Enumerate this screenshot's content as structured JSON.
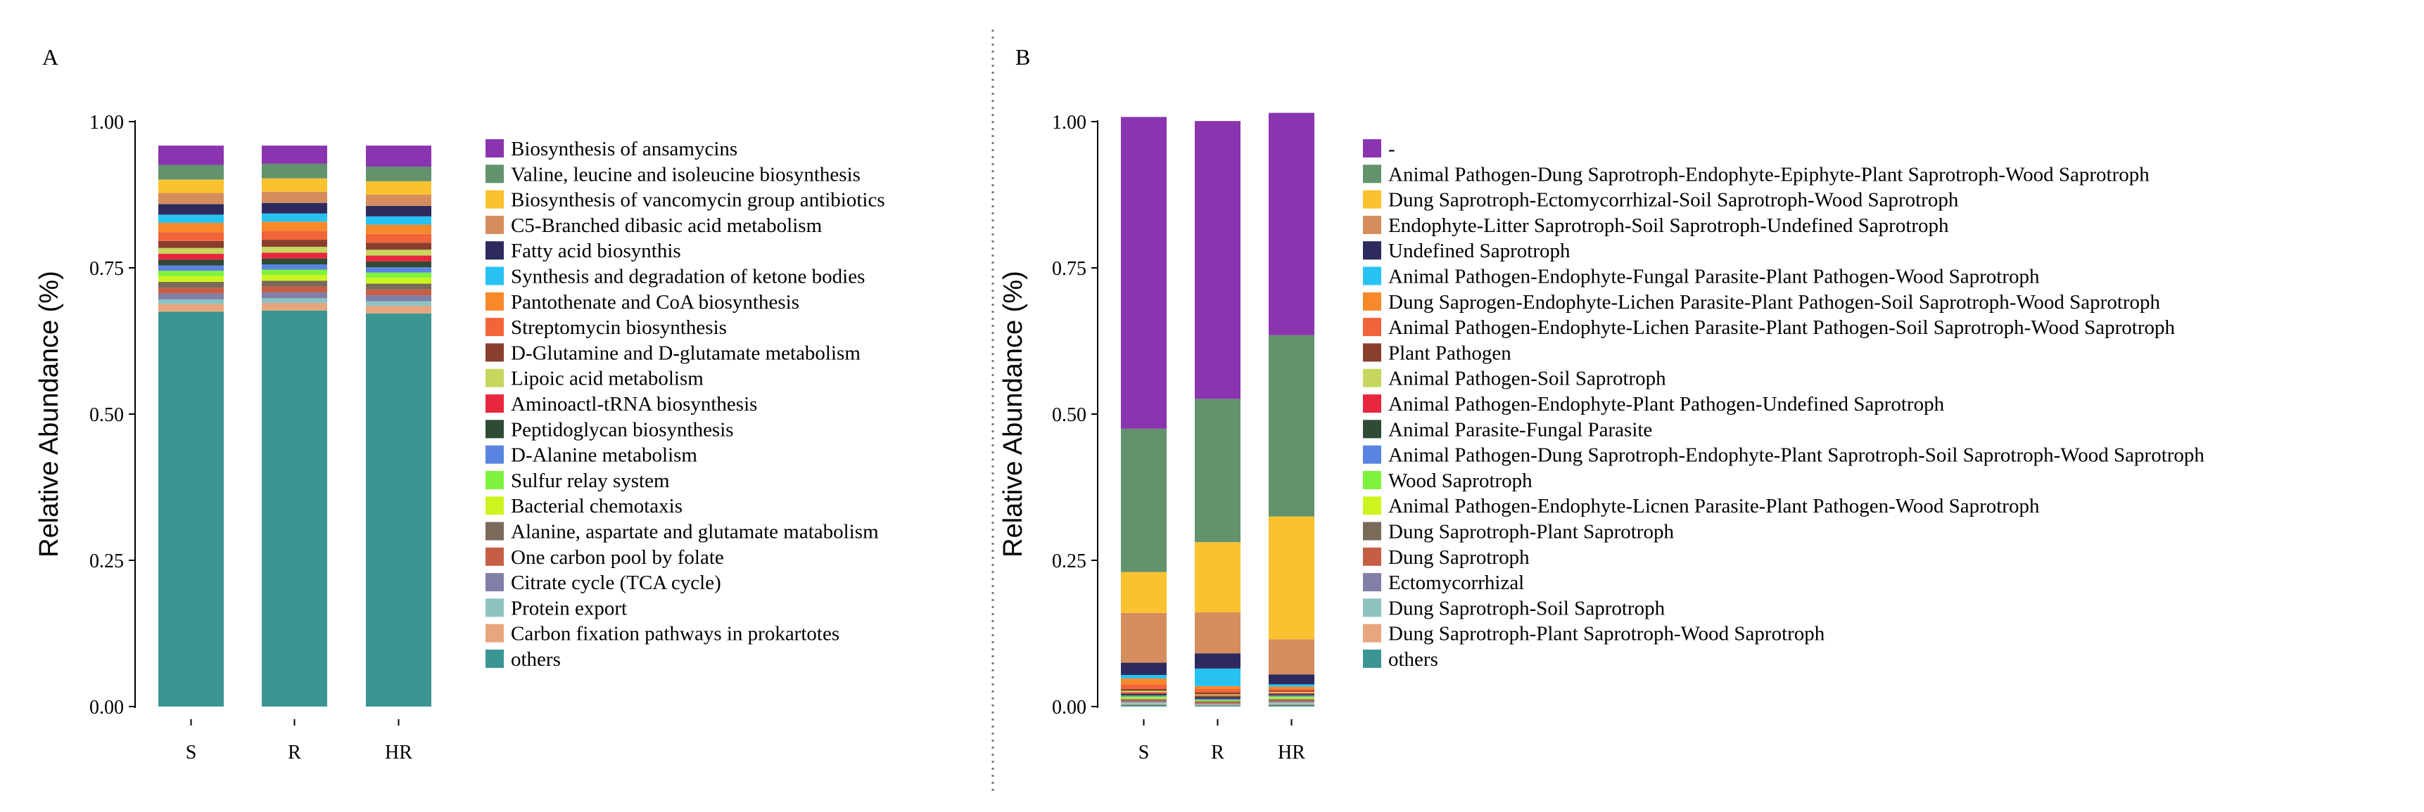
{
  "figure": {
    "panels": [
      "A",
      "B"
    ]
  },
  "chart_data": [
    {
      "panel": "A",
      "type": "bar",
      "stacked": true,
      "categories": [
        "S",
        "R",
        "HR"
      ],
      "ylabel": "Relative Abundance (%)",
      "xlabel": "",
      "ylim": [
        0,
        1
      ],
      "yticks": [
        "0.00",
        "0.25",
        "0.50",
        "0.75",
        "1.00"
      ],
      "legend_position": "right",
      "series": [
        {
          "name": "others",
          "color": "#3B9593",
          "values": [
            0.675,
            0.677,
            0.672
          ]
        },
        {
          "name": "Carbon fixation pathways in prokartotes",
          "color": "#E8A67F",
          "values": [
            0.013,
            0.013,
            0.013
          ]
        },
        {
          "name": "Protein export",
          "color": "#8CC3C1",
          "values": [
            0.008,
            0.008,
            0.008
          ]
        },
        {
          "name": "Citrate cycle (TCA cycle)",
          "color": "#7F7FA8",
          "values": [
            0.01,
            0.01,
            0.01
          ]
        },
        {
          "name": "One carbon pool by folate",
          "color": "#C65E46",
          "values": [
            0.01,
            0.01,
            0.01
          ]
        },
        {
          "name": "Alanine, aspartate and glutamate matabolism",
          "color": "#7A6A5A",
          "values": [
            0.01,
            0.01,
            0.01
          ]
        },
        {
          "name": "Bacterial chemotaxis",
          "color": "#CCF51F",
          "values": [
            0.01,
            0.01,
            0.01
          ]
        },
        {
          "name": "Sulfur relay system",
          "color": "#7EF23C",
          "values": [
            0.009,
            0.009,
            0.009
          ]
        },
        {
          "name": "D-Alanine metabolism",
          "color": "#5A84E2",
          "values": [
            0.009,
            0.009,
            0.009
          ]
        },
        {
          "name": "Peptidoglycan biosynthesis",
          "color": "#2F4A35",
          "values": [
            0.01,
            0.01,
            0.01
          ]
        },
        {
          "name": "Aminoactl-tRNA biosynthesis",
          "color": "#E8263E",
          "values": [
            0.01,
            0.01,
            0.01
          ]
        },
        {
          "name": "Lipoic acid metabolism",
          "color": "#C6D65E",
          "values": [
            0.01,
            0.01,
            0.01
          ]
        },
        {
          "name": "D-Glutamine and D-glutamate metabolism",
          "color": "#8A3E2C",
          "values": [
            0.012,
            0.012,
            0.012
          ]
        },
        {
          "name": "Streptomycin biosynthesis",
          "color": "#F2643A",
          "values": [
            0.015,
            0.015,
            0.015
          ]
        },
        {
          "name": "Pantothenate and CoA biosynthesis",
          "color": "#F7892A",
          "values": [
            0.016,
            0.016,
            0.016
          ]
        },
        {
          "name": "Synthesis and degradation of ketone bodies",
          "color": "#27C2F2",
          "values": [
            0.014,
            0.014,
            0.014
          ]
        },
        {
          "name": "Fatty acid biosynthis",
          "color": "#2D2A5E",
          "values": [
            0.018,
            0.018,
            0.018
          ]
        },
        {
          "name": "C5-Branched dibasic acid metabolism",
          "color": "#D68D5D",
          "values": [
            0.019,
            0.019,
            0.019
          ]
        },
        {
          "name": "Biosynthesis of vancomycin group antibiotics",
          "color": "#FBC22F",
          "values": [
            0.023,
            0.023,
            0.023
          ]
        },
        {
          "name": "Valine, leucine and isoleucine biosynthesis",
          "color": "#62936D",
          "values": [
            0.025,
            0.025,
            0.025
          ]
        },
        {
          "name": "Biosynthesis of ansamycins",
          "color": "#8A34B0",
          "values": [
            0.033,
            0.031,
            0.036
          ]
        }
      ]
    },
    {
      "panel": "B",
      "type": "bar",
      "stacked": true,
      "categories": [
        "S",
        "R",
        "HR"
      ],
      "ylabel": "Relative Abundance (%)",
      "xlabel": "",
      "ylim": [
        0,
        1
      ],
      "yticks": [
        "0.00",
        "0.25",
        "0.50",
        "0.75",
        "1.00"
      ],
      "legend_position": "right",
      "series": [
        {
          "name": "others",
          "color": "#3B9593",
          "values": [
            0.003,
            0.002,
            0.003
          ]
        },
        {
          "name": "Dung Saprotroph-Plant Saprotroph-Wood Saprotroph",
          "color": "#E8A67F",
          "values": [
            0.002,
            0.001,
            0.002
          ]
        },
        {
          "name": "Dung Saprotroph-Soil Saprotroph",
          "color": "#8CC3C1",
          "values": [
            0.002,
            0.001,
            0.002
          ]
        },
        {
          "name": "Ectomycorrhizal",
          "color": "#7F7FA8",
          "values": [
            0.002,
            0.001,
            0.002
          ]
        },
        {
          "name": "Dung Saprotroph",
          "color": "#C65E46",
          "values": [
            0.002,
            0.002,
            0.002
          ]
        },
        {
          "name": "Dung Saprotroph-Plant Saprotroph",
          "color": "#7A6A5A",
          "values": [
            0.002,
            0.002,
            0.002
          ]
        },
        {
          "name": "Animal Pathogen-Endophyte-Licnen Parasite-Plant Pathogen-Wood Saprotroph",
          "color": "#CCF51F",
          "values": [
            0.002,
            0.001,
            0.002
          ]
        },
        {
          "name": "Wood Saprotroph",
          "color": "#7EF23C",
          "values": [
            0.002,
            0.001,
            0.002
          ]
        },
        {
          "name": "Animal Pathogen-Dung Saprotroph-Endophyte-Plant Saprotroph-Soil Saprotroph-Wood Saprotroph",
          "color": "#5A84E2",
          "values": [
            0.002,
            0.002,
            0.002
          ]
        },
        {
          "name": "Animal Parasite-Fungal Parasite",
          "color": "#2F4A35",
          "values": [
            0.003,
            0.004,
            0.002
          ]
        },
        {
          "name": "Animal Pathogen-Endophyte-Plant Pathogen-Undefined Saprotroph",
          "color": "#E8263E",
          "values": [
            0.002,
            0.002,
            0.002
          ]
        },
        {
          "name": "Animal Pathogen-Soil Saprotroph",
          "color": "#C6D65E",
          "values": [
            0.003,
            0.002,
            0.002
          ]
        },
        {
          "name": "Plant Pathogen",
          "color": "#8A3E2C",
          "values": [
            0.003,
            0.003,
            0.002
          ]
        },
        {
          "name": "Animal Pathogen-Endophyte-Lichen Parasite-Plant Pathogen-Soil Saprotroph-Wood Saprotroph",
          "color": "#F2643A",
          "values": [
            0.008,
            0.006,
            0.003
          ]
        },
        {
          "name": "Dung Saprogen-Endophyte-Lichen Parasite-Plant Pathogen-Soil Saprotroph-Wood Saprotroph",
          "color": "#F7892A",
          "values": [
            0.01,
            0.005,
            0.004
          ]
        },
        {
          "name": "Animal Pathogen-Endophyte-Fungal Parasite-Plant Pathogen-Wood Saprotroph",
          "color": "#27C2F2",
          "values": [
            0.006,
            0.03,
            0.004
          ]
        },
        {
          "name": "Undefined Saprotroph",
          "color": "#2D2A5E",
          "values": [
            0.021,
            0.026,
            0.017
          ]
        },
        {
          "name": "Endophyte-Litter Saprotroph-Soil Saprotroph-Undefined Saprotroph",
          "color": "#D68D5D",
          "values": [
            0.085,
            0.07,
            0.06
          ]
        },
        {
          "name": "Dung Saprotroph-Ectomycorrhizal-Soil Saprotroph-Wood Saprotroph",
          "color": "#FBC22F",
          "values": [
            0.07,
            0.12,
            0.21
          ]
        },
        {
          "name": "Animal Pathogen-Dung Saprotroph-Endophyte-Epiphyte-Plant Saprotroph-Wood Saprotroph",
          "color": "#62936D",
          "values": [
            0.245,
            0.245,
            0.31
          ]
        },
        {
          "name": "-",
          "color": "#8A34B0",
          "values": [
            0.533,
            0.475,
            0.38
          ]
        }
      ]
    }
  ]
}
